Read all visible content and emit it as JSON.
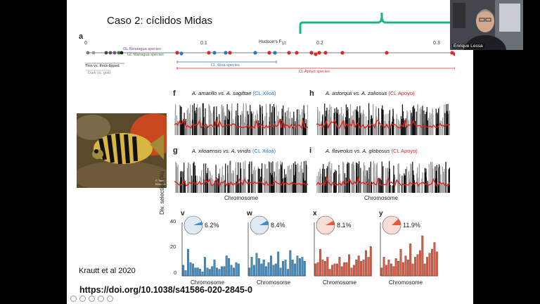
{
  "slide": {
    "title": "Caso 2: cíclidos Midas",
    "reference": "Krautt et al 2020",
    "doi": "https://doi.org/10.1038/s41586-020-2845-0",
    "panel_a": {
      "label": "a",
      "axis_title_main": "Hudson's F",
      "axis_title_sub": "ST",
      "ticks": [
        "0",
        "0.1",
        "0.2",
        "0.3"
      ],
      "labels": {
        "gl_nicaragua": "GL Nicaragua species",
        "gl_managua": "GL Managua species",
        "thin_thick": "Thin vs. thick-lipped",
        "dark_gold": "Dark vs. gold",
        "cl_xiloa": "CL Xiloá species",
        "cl_apoyo": "CL Apoyo species"
      }
    },
    "manhattan": [
      {
        "letter": "f",
        "sp1": "A. amarillo",
        "vs": " vs. ",
        "sp2": "A. sagittae",
        "lake": "(CL Xiloá)",
        "lake_color": "#2b78c4"
      },
      {
        "letter": "h",
        "sp1": "A. astorquii",
        "vs": " vs. ",
        "sp2": "A. zaliosus",
        "lake": "(CL Apoyo)",
        "lake_color": "#d62a2a"
      },
      {
        "letter": "g",
        "sp1": "A. xiloaensis",
        "vs": " vs. ",
        "sp2": "A. viridis",
        "lake": "(CL Xiloá)",
        "lake_color": "#2b78c4"
      },
      {
        "letter": "i",
        "sp1": "A. flaveolus",
        "vs": " vs. ",
        "sp2": "A. globosus",
        "lake": "(CL Apoyo)",
        "lake_color": "#d62a2a"
      }
    ],
    "manhattan_xlabel_left": "Chromosome",
    "manhattan_xlabel_right": "Chromosome",
    "bars_ylabel": "Div. selection (%)",
    "bars_yticks": [
      "40",
      "20",
      "0"
    ],
    "bars_xlabel": "Chromosome",
    "fish_credit": "© Tom Brinkers"
  },
  "video": {
    "participant_name": "Enrique Lessa"
  },
  "chart_data": [
    {
      "type": "bar",
      "label": "v",
      "title": "",
      "xlabel": "Chromosome",
      "ylabel": "Div. selection (%)",
      "ylim": [
        0,
        40
      ],
      "pie_percent": 6.2,
      "pie_label": "6.2%",
      "color": "#3f8fc9",
      "values": [
        8,
        4,
        20,
        10,
        9,
        6,
        6,
        5,
        3,
        14,
        6,
        5,
        7,
        12,
        6,
        5,
        7,
        7,
        15,
        13,
        8,
        6,
        10,
        9
      ]
    },
    {
      "type": "bar",
      "label": "w",
      "title": "",
      "xlabel": "Chromosome",
      "ylabel": "Div. selection (%)",
      "ylim": [
        0,
        40
      ],
      "pie_percent": 8.4,
      "pie_label": "8.4%",
      "color": "#3f8fc9",
      "values": [
        6,
        14,
        8,
        17,
        13,
        9,
        12,
        7,
        10,
        15,
        8,
        9,
        18,
        6,
        11,
        12,
        5,
        19,
        12,
        9,
        15,
        13,
        14,
        11
      ]
    },
    {
      "type": "bar",
      "label": "x",
      "title": "",
      "xlabel": "Chromosome",
      "ylabel": "Div. selection (%)",
      "ylim": [
        0,
        40
      ],
      "pie_percent": 8.1,
      "pie_label": "8.1%",
      "color": "#e05a40",
      "values": [
        9,
        10,
        20,
        12,
        11,
        14,
        5,
        8,
        9,
        9,
        14,
        7,
        10,
        10,
        16,
        6,
        8,
        12,
        15,
        11,
        12,
        19,
        14,
        22
      ]
    },
    {
      "type": "bar",
      "label": "y",
      "title": "",
      "xlabel": "Chromosome",
      "ylabel": "Div. selection (%)",
      "ylim": [
        0,
        40
      ],
      "pie_percent": 11.9,
      "pie_label": "11.9%",
      "color": "#e05a40",
      "values": [
        6,
        14,
        8,
        12,
        9,
        7,
        13,
        11,
        20,
        10,
        15,
        12,
        24,
        9,
        14,
        16,
        19,
        30,
        9,
        14,
        17,
        20,
        25,
        18
      ]
    }
  ]
}
